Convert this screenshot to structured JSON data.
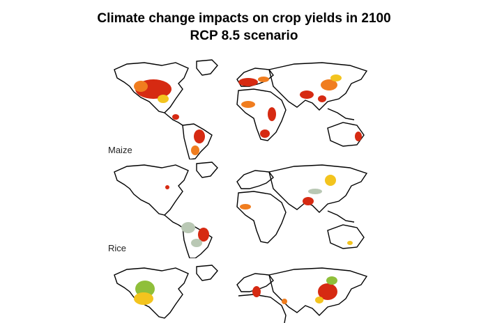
{
  "title": {
    "line1": "Climate change impacts on crop yields in 2100",
    "line2": "RCP 8.5 scenario"
  },
  "panels": [
    {
      "label": "Maize"
    },
    {
      "label": "Rice"
    },
    {
      "label": ""
    }
  ],
  "colors": {
    "strong_decrease": "#d62a12",
    "decrease": "#f07d1f",
    "slight_decrease": "#f3c41e",
    "increase": "#8fbf3a",
    "no_change": "#b9c8b4",
    "coastline": "#000000"
  }
}
